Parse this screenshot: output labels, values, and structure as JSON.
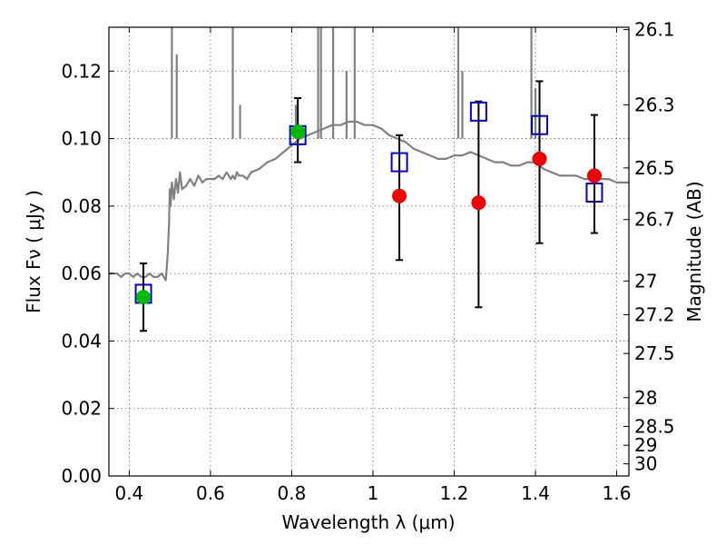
{
  "chart_data": {
    "type": "scatter",
    "xlabel": "Wavelength  λ (μm)",
    "ylabel": "Flux  Fν  ( μJy )",
    "ylabel_right": "Magnitude (AB)",
    "xlim": [
      0.35,
      1.63
    ],
    "ylim": [
      0.0,
      0.133
    ],
    "grid": true,
    "x_ticks": [
      0.4,
      0.6,
      0.8,
      1.0,
      1.2,
      1.4,
      1.6
    ],
    "x_tick_labels": [
      "0.4",
      "0.6",
      "0.8",
      "1",
      "1.2",
      "1.4",
      "1.6"
    ],
    "y_ticks": [
      0.0,
      0.02,
      0.04,
      0.06,
      0.08,
      0.1,
      0.12
    ],
    "y_tick_labels": [
      "0.00",
      "0.02",
      "0.04",
      "0.06",
      "0.08",
      "0.10",
      "0.12"
    ],
    "right_ticks": [
      {
        "label": "26.1",
        "flux": 0.1323
      },
      {
        "label": "26.3",
        "flux": 0.11
      },
      {
        "label": "26.5",
        "flux": 0.0913
      },
      {
        "label": "26.7",
        "flux": 0.076
      },
      {
        "label": "27",
        "flux": 0.0578
      },
      {
        "label": "27.2",
        "flux": 0.0478
      },
      {
        "label": "27.5",
        "flux": 0.0363
      },
      {
        "label": "28",
        "flux": 0.0232
      },
      {
        "label": "28.5",
        "flux": 0.0147
      },
      {
        "label": "29",
        "flux": 0.0091
      },
      {
        "label": "30",
        "flux": 0.0036
      }
    ],
    "series": [
      {
        "kind": "line",
        "color": "#808080",
        "x": [
          0.35,
          0.36,
          0.37,
          0.38,
          0.39,
          0.4,
          0.41,
          0.42,
          0.43,
          0.44,
          0.45,
          0.46,
          0.47,
          0.48,
          0.49,
          0.495,
          0.498,
          0.5,
          0.502,
          0.505,
          0.51,
          0.515,
          0.52,
          0.525,
          0.53,
          0.54,
          0.55,
          0.56,
          0.57,
          0.58,
          0.59,
          0.6,
          0.61,
          0.62,
          0.63,
          0.64,
          0.65,
          0.655,
          0.66,
          0.665,
          0.67,
          0.68,
          0.69,
          0.7,
          0.72,
          0.74,
          0.76,
          0.78,
          0.8,
          0.82,
          0.84,
          0.86,
          0.88,
          0.9,
          0.92,
          0.94,
          0.96,
          0.98,
          1.0,
          1.02,
          1.04,
          1.06,
          1.08,
          1.1,
          1.12,
          1.14,
          1.16,
          1.18,
          1.2,
          1.22,
          1.24,
          1.26,
          1.28,
          1.3,
          1.32,
          1.34,
          1.36,
          1.38,
          1.4,
          1.42,
          1.44,
          1.46,
          1.48,
          1.5,
          1.52,
          1.54,
          1.56,
          1.58,
          1.6,
          1.63
        ],
        "y": [
          0.06,
          0.06,
          0.06,
          0.059,
          0.06,
          0.06,
          0.059,
          0.06,
          0.059,
          0.059,
          0.06,
          0.059,
          0.059,
          0.06,
          0.058,
          0.066,
          0.075,
          0.085,
          0.08,
          0.087,
          0.082,
          0.088,
          0.084,
          0.09,
          0.085,
          0.086,
          0.088,
          0.086,
          0.089,
          0.087,
          0.088,
          0.088,
          0.088,
          0.089,
          0.088,
          0.09,
          0.088,
          0.089,
          0.088,
          0.09,
          0.089,
          0.089,
          0.088,
          0.09,
          0.091,
          0.093,
          0.094,
          0.096,
          0.098,
          0.1,
          0.101,
          0.102,
          0.103,
          0.104,
          0.104,
          0.105,
          0.105,
          0.104,
          0.104,
          0.103,
          0.101,
          0.1,
          0.099,
          0.097,
          0.096,
          0.095,
          0.094,
          0.094,
          0.095,
          0.095,
          0.096,
          0.095,
          0.094,
          0.093,
          0.093,
          0.092,
          0.092,
          0.093,
          0.093,
          0.091,
          0.09,
          0.089,
          0.089,
          0.089,
          0.088,
          0.088,
          0.088,
          0.088,
          0.087,
          0.087
        ]
      },
      {
        "kind": "error_bars",
        "color": "#000000",
        "x": [
          0.435,
          0.815,
          1.065,
          1.26,
          1.41,
          1.545
        ],
        "y_low": [
          0.043,
          0.093,
          0.064,
          0.05,
          0.069,
          0.072
        ],
        "y_high": [
          0.063,
          0.112,
          0.101,
          0.111,
          0.117,
          0.107
        ]
      },
      {
        "kind": "open_squares",
        "color": "#0000cc",
        "x": [
          0.435,
          0.815,
          1.065,
          1.26,
          1.41,
          1.545
        ],
        "y": [
          0.054,
          0.101,
          0.093,
          0.108,
          0.104,
          0.084
        ]
      },
      {
        "kind": "filled_circles",
        "color": "#00bb00",
        "x": [
          0.435,
          0.815
        ],
        "y": [
          0.053,
          0.102
        ]
      },
      {
        "kind": "filled_circles",
        "color": "#ee0000",
        "x": [
          1.065,
          1.26,
          1.41,
          1.545
        ],
        "y": [
          0.083,
          0.081,
          0.094,
          0.089
        ]
      }
    ]
  }
}
